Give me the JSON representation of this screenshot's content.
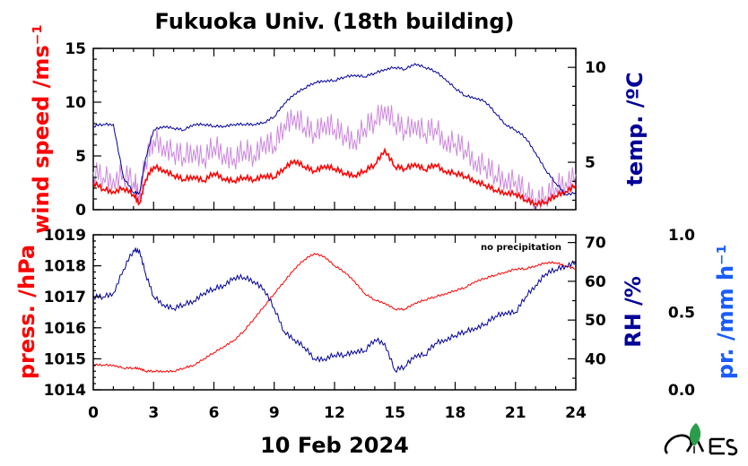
{
  "title": "Fukuoka Univ. (18th building)",
  "date_label": "10 Feb 2024",
  "note": "no precipitation",
  "colors": {
    "wind": "#ff0000",
    "wind_gust": "#cc88dd",
    "temp": "#000099",
    "pressure": "#ff0000",
    "rh": "#000099",
    "precip": "#1a5cff",
    "logo": "#2a9d4a"
  },
  "axes": {
    "wind": {
      "label": "wind speed /ms⁻¹",
      "ylim": [
        0,
        15
      ],
      "ticks": [
        "15",
        "10",
        "5",
        "0"
      ]
    },
    "temp": {
      "label": "temp. /ºC",
      "ylim": [
        2.5,
        11
      ],
      "ticks": [
        "10",
        "5"
      ]
    },
    "pressure": {
      "label": "press. /hPa",
      "ylim": [
        1014,
        1019
      ],
      "ticks": [
        "1019",
        "1018",
        "1017",
        "1016",
        "1015",
        "1014"
      ]
    },
    "rh": {
      "label": "RH /%",
      "ylim": [
        32,
        72
      ],
      "ticks": [
        "70",
        "60",
        "50",
        "40"
      ]
    },
    "precip": {
      "label": "pr. /mm h⁻¹",
      "ylim": [
        0,
        1
      ],
      "ticks": [
        "1.0",
        "0.5",
        "0.0"
      ]
    },
    "x": {
      "xlim": [
        0,
        24
      ],
      "ticks": [
        "0",
        "3",
        "6",
        "9",
        "12",
        "15",
        "18",
        "21",
        "24"
      ]
    }
  },
  "chart_data": [
    {
      "type": "line",
      "title": "Fukuoka Univ. (18th building)",
      "xlabel": "10 Feb 2024",
      "ylabel": "wind speed /ms⁻¹",
      "xlim": [
        0,
        24
      ],
      "ylim": [
        0,
        15
      ],
      "y2label": "temp. /ºC",
      "y2lim": [
        2.5,
        11
      ],
      "series": [
        {
          "axis": "y",
          "color": "#ff0000",
          "x": [
            0,
            0.5,
            1,
            1.5,
            2,
            2.3,
            2.6,
            3,
            3.5,
            4,
            4.5,
            5,
            5.5,
            6,
            6.5,
            7,
            7.5,
            8,
            8.5,
            9,
            9.5,
            10,
            10.5,
            11,
            11.5,
            12,
            12.5,
            13,
            13.5,
            14,
            14.5,
            15,
            15.5,
            16,
            16.5,
            17,
            17.5,
            18,
            18.5,
            19,
            19.5,
            20,
            20.5,
            21,
            21.5,
            22,
            22.5,
            23,
            23.5,
            24
          ],
          "y": [
            2.5,
            1.9,
            1.7,
            2.0,
            1.4,
            0.6,
            2.8,
            4.0,
            3.7,
            3.2,
            2.8,
            3.1,
            2.7,
            3.4,
            2.9,
            2.7,
            3.0,
            2.8,
            3.2,
            3.0,
            3.9,
            4.6,
            4.0,
            3.6,
            4.1,
            3.8,
            3.4,
            3.2,
            3.6,
            4.2,
            5.6,
            4.0,
            3.8,
            4.3,
            3.7,
            4.2,
            3.6,
            3.4,
            3.1,
            2.7,
            2.3,
            1.8,
            1.6,
            1.5,
            0.9,
            0.6,
            0.7,
            1.3,
            1.7,
            2.3
          ]
        },
        {
          "axis": "y",
          "color": "#cc88dd",
          "x": [
            0,
            0.5,
            1,
            1.5,
            2,
            2.3,
            2.6,
            3,
            3.5,
            4,
            4.5,
            5,
            5.5,
            6,
            6.5,
            7,
            7.5,
            8,
            8.5,
            9,
            9.5,
            10,
            10.5,
            11,
            11.5,
            12,
            12.5,
            13,
            13.5,
            14,
            14.5,
            15,
            15.5,
            16,
            16.5,
            17,
            17.5,
            18,
            18.5,
            19,
            19.5,
            20,
            20.5,
            21,
            21.5,
            22,
            22.5,
            23,
            23.5,
            24
          ],
          "y": [
            3.5,
            3.0,
            2.9,
            3.3,
            2.6,
            1.6,
            4.5,
            6.5,
            6.0,
            5.4,
            4.9,
            5.6,
            4.8,
            5.9,
            5.2,
            4.8,
            5.5,
            5.1,
            6.4,
            5.9,
            8.0,
            8.8,
            7.7,
            7.2,
            8.2,
            7.5,
            7.0,
            6.5,
            7.6,
            8.3,
            9.6,
            8.1,
            7.4,
            8.2,
            7.1,
            7.6,
            6.5,
            6.2,
            5.6,
            4.6,
            4.1,
            3.2,
            2.9,
            2.7,
            1.6,
            1.1,
            1.3,
            2.1,
            2.6,
            3.3
          ]
        },
        {
          "axis": "y2",
          "color": "#000099",
          "x": [
            0,
            0.5,
            1,
            1.5,
            2,
            2.3,
            2.6,
            3,
            3.5,
            4,
            4.5,
            5,
            5.5,
            6,
            6.5,
            7,
            7.5,
            8,
            8.5,
            9,
            9.5,
            10,
            10.5,
            11,
            11.5,
            12,
            12.5,
            13,
            13.5,
            14,
            14.5,
            15,
            15.5,
            16,
            16.5,
            17,
            17.5,
            18,
            18.5,
            19,
            19.5,
            20,
            20.5,
            21,
            21.5,
            22,
            22.5,
            23,
            23.5,
            24
          ],
          "y": [
            6.9,
            7.0,
            7.0,
            4.2,
            3.4,
            3.4,
            5.2,
            6.7,
            6.9,
            6.8,
            6.7,
            7.0,
            7.0,
            6.9,
            6.9,
            7.0,
            7.0,
            7.0,
            7.1,
            7.4,
            8.1,
            8.6,
            8.9,
            9.2,
            9.3,
            9.3,
            9.5,
            9.6,
            9.5,
            9.7,
            9.9,
            10.0,
            9.9,
            10.2,
            10.0,
            9.8,
            9.4,
            8.9,
            8.5,
            8.4,
            8.2,
            7.6,
            7.0,
            6.7,
            6.3,
            5.5,
            4.6,
            3.9,
            3.3,
            3.4
          ]
        }
      ]
    },
    {
      "type": "line",
      "xlabel": "10 Feb 2024",
      "ylabel": "press. /hPa",
      "xlim": [
        0,
        24
      ],
      "ylim": [
        1014,
        1019
      ],
      "y2label": "RH /%",
      "y2lim": [
        32,
        72
      ],
      "y3label": "pr. /mm h⁻¹",
      "y3lim": [
        0,
        1
      ],
      "series": [
        {
          "axis": "y",
          "color": "#ff0000",
          "x": [
            0,
            0.5,
            1,
            1.5,
            2,
            2.3,
            2.6,
            3,
            3.5,
            4,
            4.5,
            5,
            5.5,
            6,
            6.5,
            7,
            7.5,
            8,
            8.5,
            9,
            9.5,
            10,
            10.5,
            11,
            11.5,
            12,
            12.5,
            13,
            13.5,
            14,
            14.5,
            15,
            15.5,
            16,
            16.5,
            17,
            17.5,
            18,
            18.5,
            19,
            19.5,
            20,
            20.5,
            21,
            21.5,
            22,
            22.5,
            23,
            23.5,
            24
          ],
          "y": [
            1014.8,
            1014.8,
            1014.8,
            1014.7,
            1014.7,
            1014.7,
            1014.6,
            1014.6,
            1014.6,
            1014.6,
            1014.7,
            1014.8,
            1015.0,
            1015.2,
            1015.4,
            1015.6,
            1015.9,
            1016.3,
            1016.7,
            1017.1,
            1017.5,
            1017.9,
            1018.2,
            1018.4,
            1018.3,
            1018.0,
            1017.8,
            1017.5,
            1017.1,
            1016.9,
            1016.8,
            1016.6,
            1016.6,
            1016.8,
            1016.9,
            1017.0,
            1017.1,
            1017.2,
            1017.3,
            1017.5,
            1017.6,
            1017.7,
            1017.8,
            1017.9,
            1017.9,
            1018.0,
            1018.1,
            1018.1,
            1018.0,
            1017.9
          ]
        },
        {
          "axis": "y2",
          "color": "#000099",
          "x": [
            0,
            0.5,
            1,
            1.5,
            2,
            2.3,
            2.6,
            3,
            3.5,
            4,
            4.5,
            5,
            5.5,
            6,
            6.5,
            7,
            7.5,
            8,
            8.5,
            9,
            9.5,
            10,
            10.5,
            11,
            11.5,
            12,
            12.5,
            13,
            13.5,
            14,
            14.5,
            15,
            15.5,
            16,
            16.5,
            17,
            17.5,
            18,
            18.5,
            19,
            19.5,
            20,
            20.5,
            21,
            21.5,
            22,
            22.5,
            23,
            23.5,
            24
          ],
          "y": [
            56,
            56,
            57,
            63,
            68,
            68,
            62,
            56,
            54,
            53,
            54,
            55,
            57,
            58,
            59,
            61,
            61,
            60,
            58,
            53,
            47,
            45,
            43,
            40,
            40,
            41,
            41,
            42,
            42,
            45,
            44,
            37,
            38,
            41,
            41,
            44,
            45,
            46,
            47,
            48,
            49,
            51,
            52,
            52,
            56,
            59,
            62,
            63,
            64,
            65
          ]
        }
      ]
    }
  ]
}
